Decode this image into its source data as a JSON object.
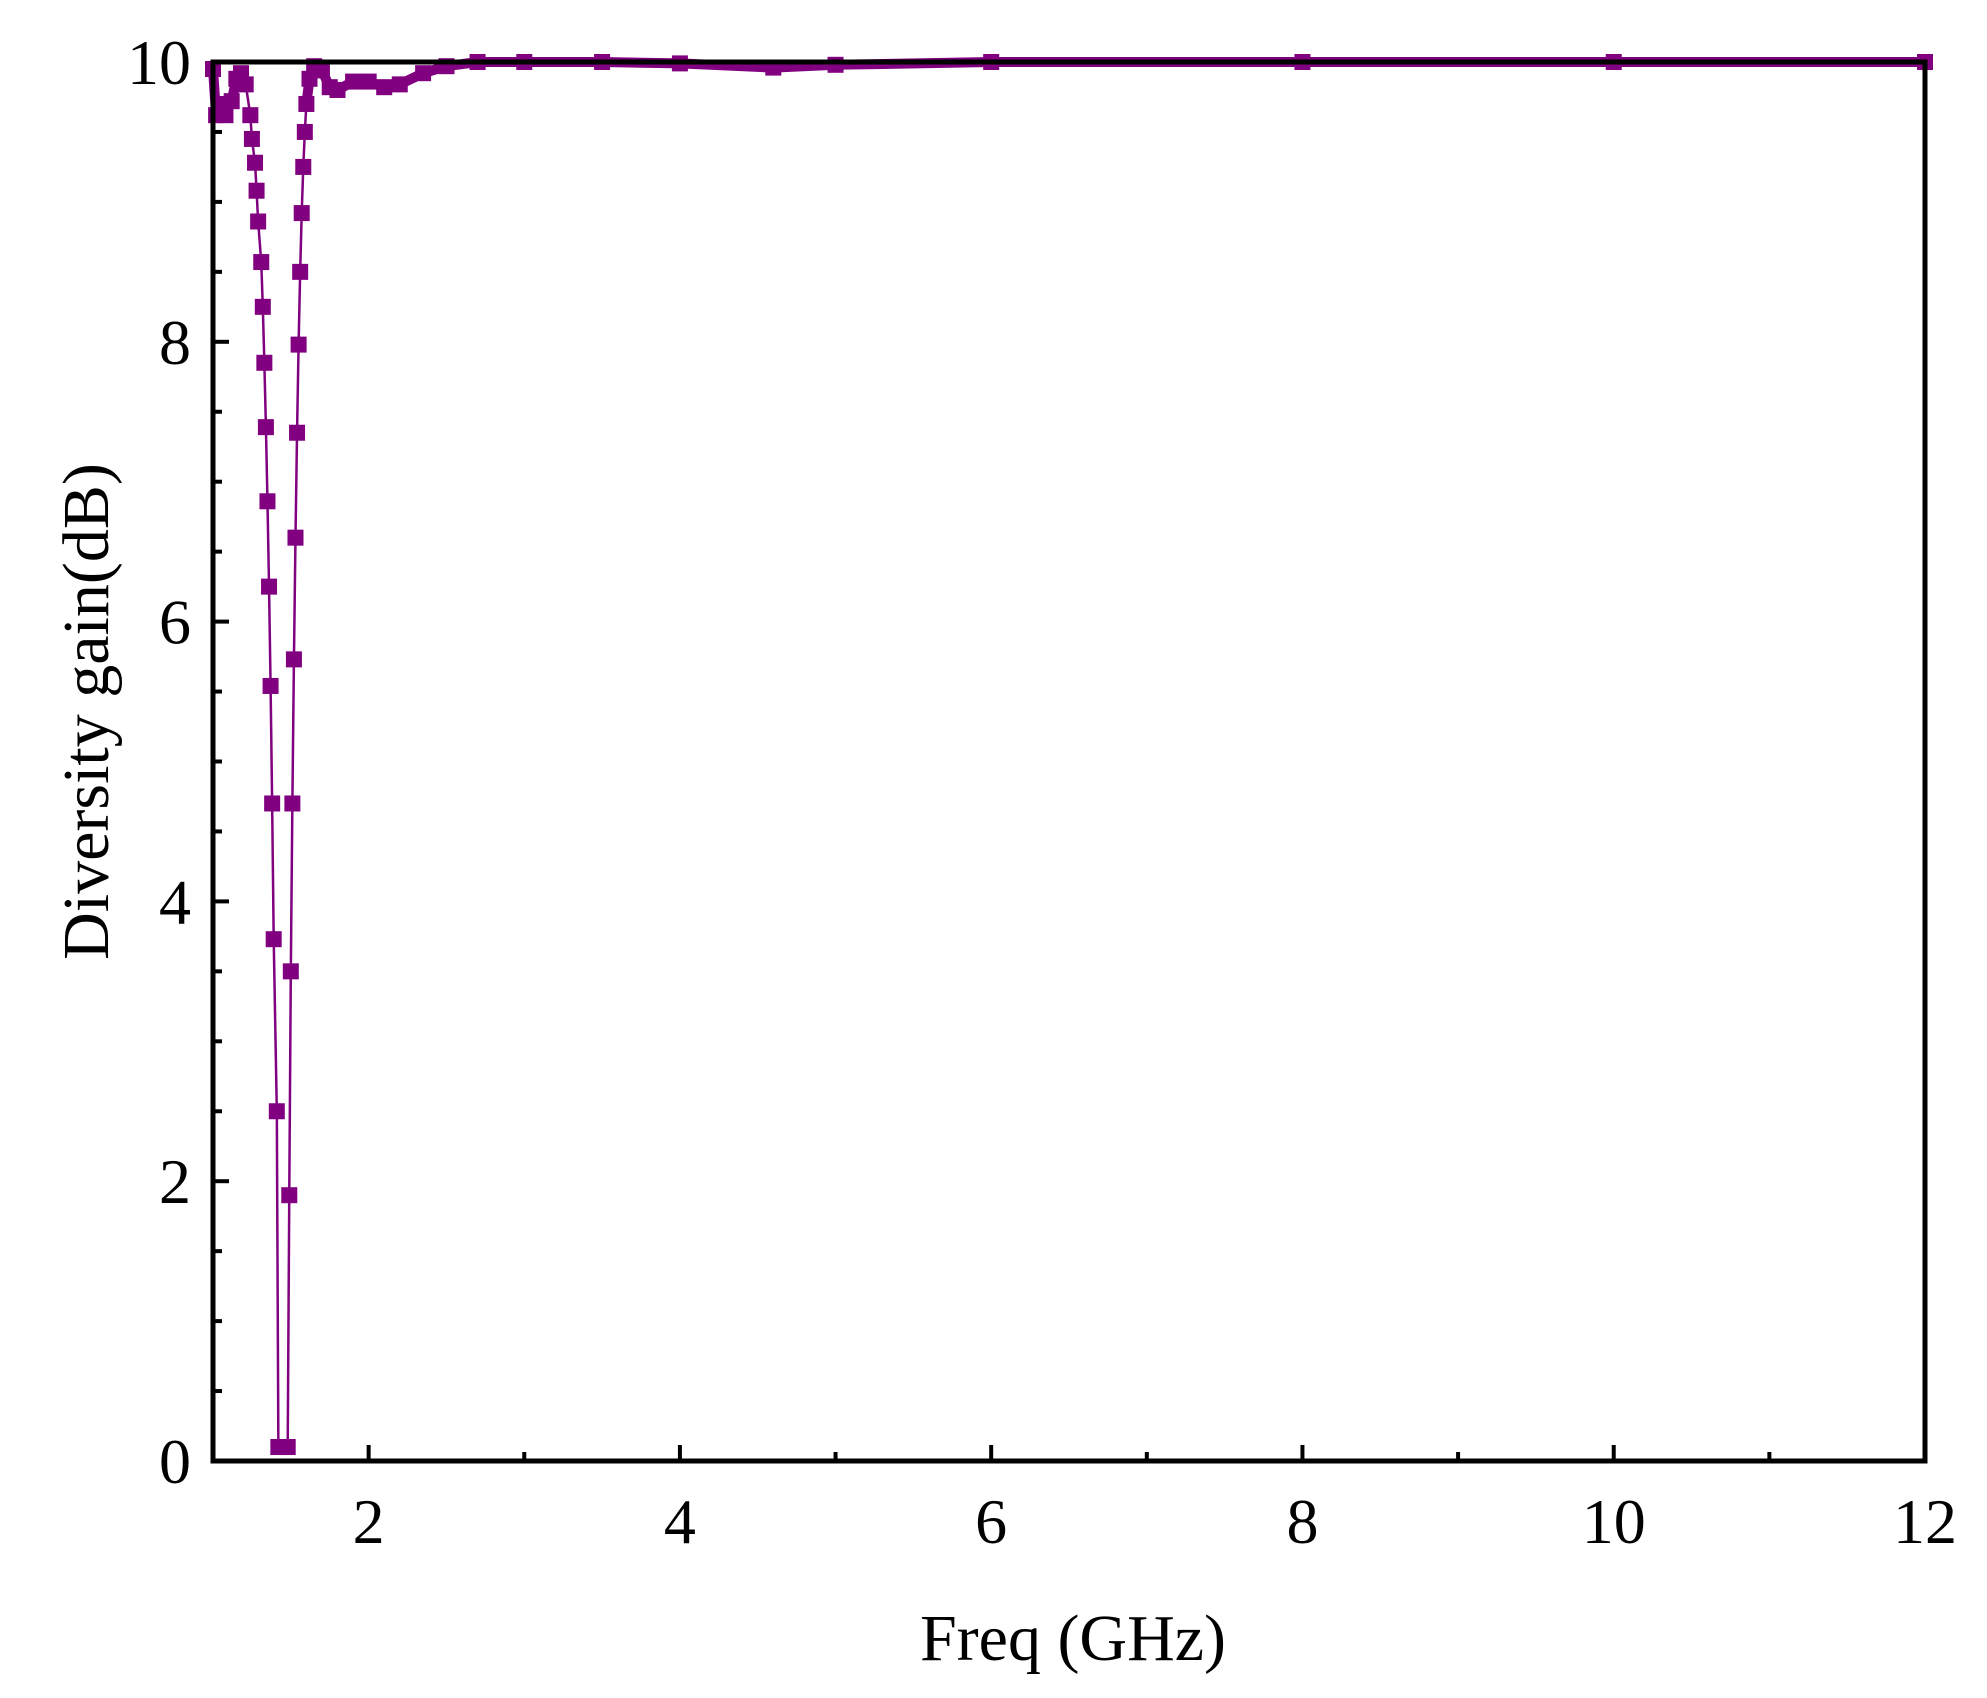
{
  "chart_data": {
    "type": "line",
    "xlabel": "Freq (GHz)",
    "ylabel": "Diversity gain(dB)",
    "xlim": [
      1,
      12
    ],
    "ylim": [
      0,
      10
    ],
    "x_ticks": [
      2,
      4,
      6,
      8,
      10,
      12
    ],
    "x_tick_labels": [
      "2",
      "4",
      "6",
      "8",
      "10",
      "12"
    ],
    "y_ticks": [
      0,
      2,
      4,
      6,
      8,
      10
    ],
    "y_tick_labels": [
      "0",
      "2",
      "4",
      "6",
      "8",
      "10"
    ],
    "x_minor_step": 1,
    "y_minor_step": 0.5,
    "grid": false,
    "legend": "none",
    "series": [
      {
        "color": "#800080",
        "marker": "square",
        "points": [
          [
            1.0,
            9.95
          ],
          [
            1.02,
            9.62
          ],
          [
            1.05,
            9.7
          ],
          [
            1.08,
            9.62
          ],
          [
            1.12,
            9.72
          ],
          [
            1.15,
            9.88
          ],
          [
            1.18,
            9.92
          ],
          [
            1.21,
            9.84
          ],
          [
            1.24,
            9.62
          ],
          [
            1.25,
            9.45
          ],
          [
            1.27,
            9.28
          ],
          [
            1.28,
            9.08
          ],
          [
            1.29,
            8.86
          ],
          [
            1.31,
            8.57
          ],
          [
            1.32,
            8.25
          ],
          [
            1.33,
            7.85
          ],
          [
            1.34,
            7.39
          ],
          [
            1.35,
            6.86
          ],
          [
            1.36,
            6.25
          ],
          [
            1.37,
            5.54
          ],
          [
            1.38,
            4.7
          ],
          [
            1.39,
            3.73
          ],
          [
            1.41,
            2.5
          ],
          [
            1.42,
            0.1
          ],
          [
            1.44,
            0.1
          ],
          [
            1.47,
            0.1
          ],
          [
            1.48,
            0.1
          ],
          [
            1.49,
            1.9
          ],
          [
            1.5,
            3.5
          ],
          [
            1.51,
            4.7
          ],
          [
            1.52,
            5.73
          ],
          [
            1.53,
            6.6
          ],
          [
            1.54,
            7.35
          ],
          [
            1.55,
            7.98
          ],
          [
            1.56,
            8.5
          ],
          [
            1.57,
            8.92
          ],
          [
            1.58,
            9.25
          ],
          [
            1.59,
            9.5
          ],
          [
            1.6,
            9.7
          ],
          [
            1.62,
            9.88
          ],
          [
            1.65,
            9.97
          ],
          [
            1.7,
            9.94
          ],
          [
            1.75,
            9.82
          ],
          [
            1.8,
            9.8
          ],
          [
            1.9,
            9.86
          ],
          [
            2.0,
            9.86
          ],
          [
            2.1,
            9.82
          ],
          [
            2.2,
            9.84
          ],
          [
            2.35,
            9.92
          ],
          [
            2.5,
            9.97
          ],
          [
            2.7,
            10.0
          ],
          [
            3.0,
            10.0
          ],
          [
            3.5,
            10.0
          ],
          [
            4.0,
            9.99
          ],
          [
            4.6,
            9.96
          ],
          [
            5.0,
            9.98
          ],
          [
            6.0,
            10.0
          ],
          [
            8.0,
            10.0
          ],
          [
            10.0,
            10.0
          ],
          [
            12.0,
            10.0
          ]
        ]
      }
    ]
  }
}
